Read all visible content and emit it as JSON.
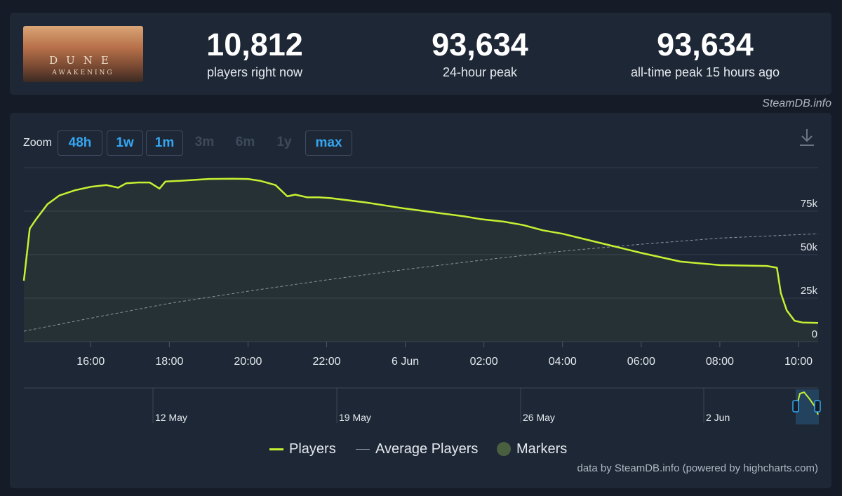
{
  "game": {
    "banner_title": "DUNE",
    "banner_subtitle": "AWAKENING"
  },
  "stats": [
    {
      "value": "10,812",
      "label": "players right now"
    },
    {
      "value": "93,634",
      "label": "24-hour peak"
    },
    {
      "value": "93,634",
      "label": "all-time peak 15 hours ago"
    }
  ],
  "source_label": "SteamDB.info",
  "zoom": {
    "label": "Zoom",
    "buttons": [
      {
        "label": "48h",
        "active": true
      },
      {
        "label": "1w",
        "active": true
      },
      {
        "label": "1m",
        "active": true
      },
      {
        "label": "3m",
        "active": false
      },
      {
        "label": "6m",
        "active": false
      },
      {
        "label": "1y",
        "active": false
      },
      {
        "label": "max",
        "active": true
      }
    ]
  },
  "legend": {
    "players": "Players",
    "average": "Average Players",
    "markers": "Markers"
  },
  "credits": "data by SteamDB.info (powered by highcharts.com)",
  "colors": {
    "players_line": "#c7f032",
    "average_line": "#8a929d",
    "marker": "#4a5f40",
    "accent": "#35a6f1",
    "background": "#1e2735"
  },
  "chart_data": {
    "type": "line",
    "x_unit": "hours",
    "x_ticks": [
      {
        "x": 16,
        "label": "16:00"
      },
      {
        "x": 18,
        "label": "18:00"
      },
      {
        "x": 20,
        "label": "20:00"
      },
      {
        "x": 22,
        "label": "22:00"
      },
      {
        "x": 24,
        "label": "6 Jun"
      },
      {
        "x": 26,
        "label": "02:00"
      },
      {
        "x": 28,
        "label": "04:00"
      },
      {
        "x": 30,
        "label": "06:00"
      },
      {
        "x": 32,
        "label": "08:00"
      },
      {
        "x": 34,
        "label": "10:00"
      }
    ],
    "xlim": [
      14.3,
      34.5
    ],
    "ylim": [
      0,
      100000
    ],
    "y_ticks": [
      {
        "y": 0,
        "label": "0"
      },
      {
        "y": 25000,
        "label": "25k"
      },
      {
        "y": 50000,
        "label": "50k"
      },
      {
        "y": 75000,
        "label": "75k"
      }
    ],
    "grid": true,
    "legend_position": "bottom-center",
    "series": [
      {
        "name": "Players",
        "x": [
          14.3,
          14.45,
          14.6,
          14.9,
          15.2,
          15.6,
          16.0,
          16.4,
          16.7,
          16.9,
          17.2,
          17.5,
          17.75,
          17.9,
          18.3,
          19.0,
          19.6,
          20.0,
          20.3,
          20.7,
          21.0,
          21.2,
          21.5,
          21.8,
          22.1,
          23.0,
          24.0,
          25.0,
          25.5,
          25.9,
          26.5,
          27.0,
          27.5,
          28.0,
          29.0,
          30.0,
          31.0,
          32.0,
          33.2,
          33.45,
          33.55,
          33.7,
          33.9,
          34.1,
          34.5
        ],
        "y": [
          35000,
          65000,
          70000,
          79000,
          84000,
          87000,
          89000,
          90000,
          88500,
          91000,
          91500,
          91500,
          88000,
          92000,
          92500,
          93500,
          93634,
          93500,
          92500,
          90000,
          83500,
          84500,
          83000,
          83000,
          82500,
          80000,
          76500,
          73500,
          72000,
          70500,
          69000,
          67000,
          64000,
          62000,
          56500,
          51000,
          46000,
          44000,
          43500,
          42500,
          28000,
          18000,
          12000,
          11000,
          10812
        ]
      },
      {
        "name": "Average Players",
        "x": [
          14.3,
          16.0,
          18.0,
          20.0,
          22.0,
          24.0,
          26.0,
          28.0,
          30.0,
          32.0,
          34.5
        ],
        "y": [
          6000,
          13500,
          22000,
          29000,
          35500,
          41500,
          47000,
          52000,
          56000,
          59500,
          62000
        ]
      }
    ],
    "navigator": {
      "labels": [
        "12 May",
        "19 May",
        "26 May",
        "2 Jun"
      ]
    }
  }
}
